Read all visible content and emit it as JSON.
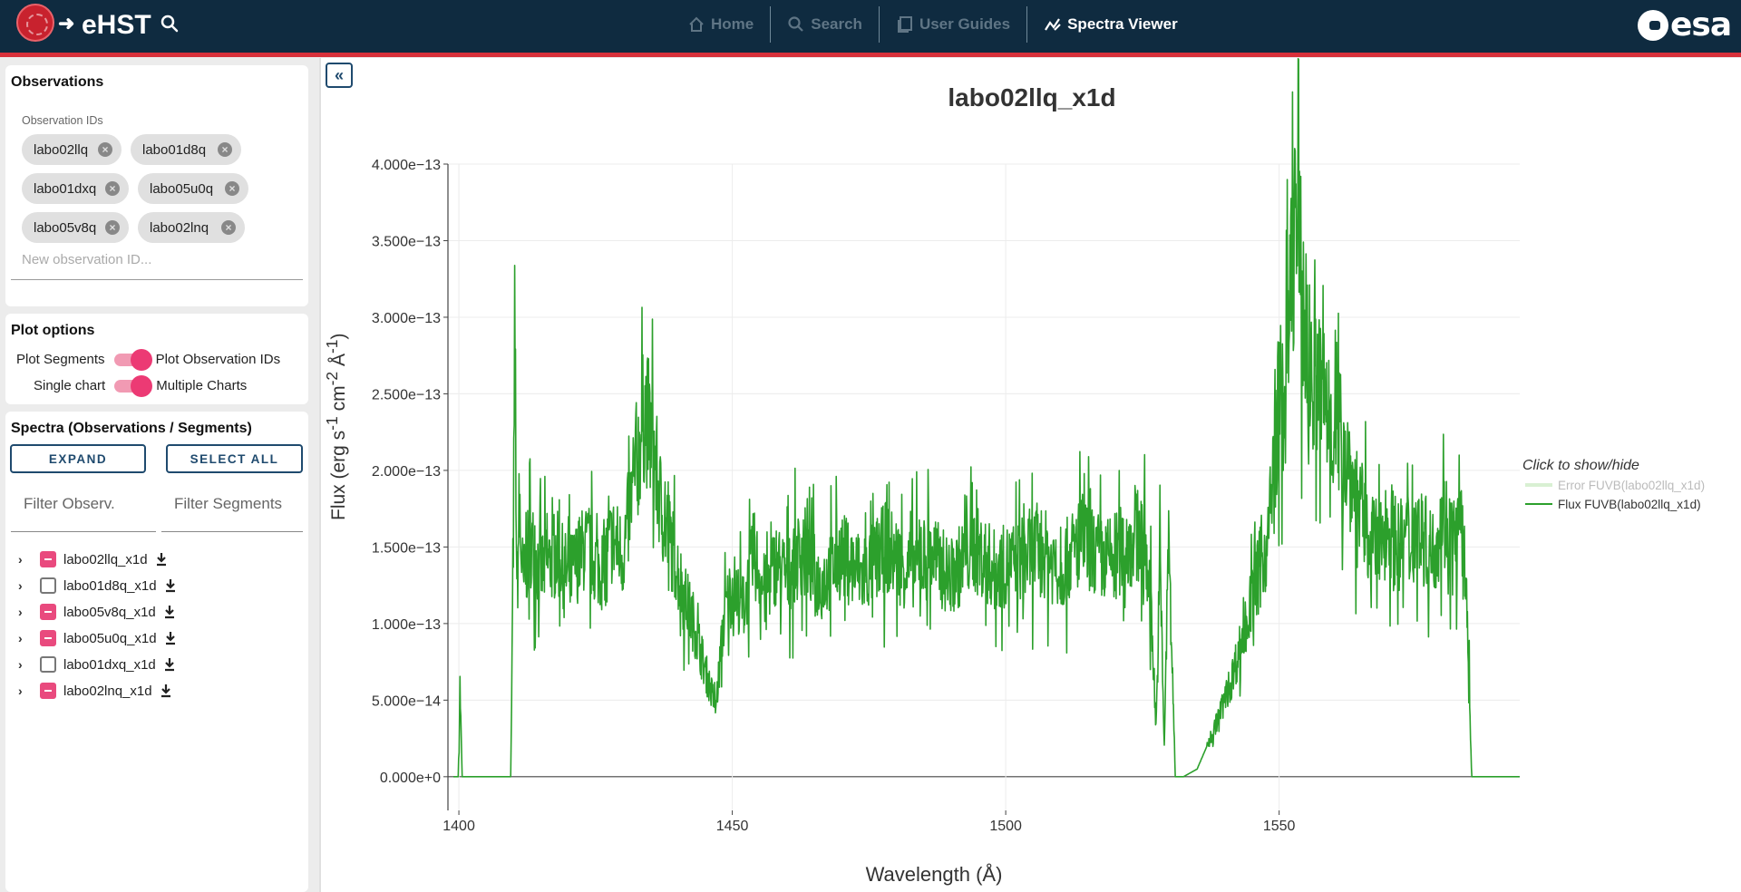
{
  "header": {
    "app_title": "eHST",
    "nav": [
      {
        "label": "Home",
        "icon": "home-icon",
        "active": false
      },
      {
        "label": "Search",
        "icon": "search-icon",
        "active": false
      },
      {
        "label": "User Guides",
        "icon": "guides-icon",
        "active": false
      },
      {
        "label": "Spectra Viewer",
        "icon": "spectra-icon",
        "active": true
      }
    ],
    "org_logo_text": "esa"
  },
  "observations": {
    "title": "Observations",
    "field_label": "Observation IDs",
    "chips": [
      "labo02llq",
      "labo01d8q",
      "labo01dxq",
      "labo05u0q",
      "labo05v8q",
      "labo02lnq"
    ],
    "new_placeholder": "New observation ID..."
  },
  "plot_options": {
    "title": "Plot options",
    "toggle1": {
      "left": "Plot Segments",
      "right": "Plot Observation IDs",
      "on": true
    },
    "toggle2": {
      "left": "Single chart",
      "right": "Multiple Charts",
      "on": true
    }
  },
  "spectra": {
    "title": "Spectra (Observations / Segments)",
    "expand_label": "EXPAND",
    "select_all_label": "SELECT ALL",
    "filter_obs_placeholder": "Filter Observ.",
    "filter_seg_placeholder": "Filter Segments",
    "items": [
      {
        "label": "labo02llq_x1d",
        "state": "indeterminate"
      },
      {
        "label": "labo01d8q_x1d",
        "state": "unchecked"
      },
      {
        "label": "labo05v8q_x1d",
        "state": "indeterminate"
      },
      {
        "label": "labo05u0q_x1d",
        "state": "indeterminate"
      },
      {
        "label": "labo01dxq_x1d",
        "state": "unchecked"
      },
      {
        "label": "labo02lnq_x1d",
        "state": "indeterminate"
      }
    ]
  },
  "chart_data": {
    "type": "line",
    "title": "labo02llq_x1d",
    "xlabel": "Wavelength (Å)",
    "ylabel_parts": [
      "Flux (erg s",
      "-1",
      " cm",
      "-2",
      " Å",
      "-1",
      ")"
    ],
    "xlim": [
      1398,
      1594
    ],
    "ylim": [
      -2.2e-14,
      4e-13
    ],
    "x_ticks": [
      1400,
      1450,
      1500,
      1550
    ],
    "y_ticks": [
      0,
      5e-14,
      1e-13,
      1.5e-13,
      2e-13,
      2.5e-13,
      3e-13,
      3.5e-13,
      4e-13
    ],
    "y_tick_labels": [
      "0.000e+0",
      "5.000e−14",
      "1.000e−13",
      "1.500e−13",
      "2.000e−13",
      "2.500e−13",
      "3.000e−13",
      "3.500e−13",
      "4.000e−13"
    ],
    "grid": true,
    "legend_placement": "right",
    "legend_title": "Click to show/hide",
    "series": [
      {
        "name": "Error FUVB(labo02llq_x1d)",
        "color": "#d9f0d3",
        "visible": false,
        "x": [],
        "y": []
      },
      {
        "name": "Flux FUVB(labo02llq_x1d)",
        "color": "#2ca02c",
        "visible": true,
        "x": [
          1399,
          1399.9,
          1400.2,
          1400.6,
          1401,
          1405,
          1409.5,
          1410.3,
          1410.6,
          1411,
          1411.8,
          1413,
          1415,
          1418,
          1420,
          1423,
          1426,
          1428,
          1430,
          1432,
          1434,
          1435.5,
          1437,
          1439,
          1441,
          1443,
          1445,
          1447,
          1448.5,
          1450,
          1452,
          1454,
          1456,
          1458,
          1460,
          1463,
          1466,
          1470,
          1474,
          1478,
          1482,
          1486,
          1490,
          1494,
          1498,
          1502,
          1506,
          1510,
          1514,
          1518,
          1522,
          1525,
          1526.5,
          1527.5,
          1528.2,
          1529,
          1529.8,
          1531,
          1532.5,
          1535,
          1538,
          1541,
          1544,
          1546,
          1548,
          1550,
          1551,
          1552,
          1553,
          1554,
          1555,
          1556,
          1558,
          1560,
          1562,
          1564,
          1566,
          1568,
          1570,
          1572,
          1575,
          1578,
          1580,
          1582,
          1583.5,
          1584.5,
          1585.2,
          1586,
          1590,
          1594
        ],
        "y": [
          0,
          0,
          6e-14,
          0,
          0,
          0,
          0,
          2.8e-13,
          1.1e-13,
          1.7e-13,
          1.25e-13,
          1.55e-13,
          1.35e-13,
          1.45e-13,
          1.3e-13,
          1.5e-13,
          1.35e-13,
          1.55e-13,
          1.45e-13,
          1.9e-13,
          2.4e-13,
          2.15e-13,
          1.75e-13,
          1.5e-13,
          1.2e-13,
          1e-13,
          7e-14,
          4.5e-14,
          1.05e-13,
          1.25e-13,
          1.1e-13,
          1.45e-13,
          1.2e-13,
          1.4e-13,
          1.3e-13,
          1.5e-13,
          1.25e-13,
          1.45e-13,
          1.3e-13,
          1.5e-13,
          1.35e-13,
          1.45e-13,
          1.3e-13,
          1.5e-13,
          1.35e-13,
          1.4e-13,
          1.5e-13,
          1.35e-13,
          1.55e-13,
          1.4e-13,
          1.5e-13,
          1.6e-13,
          1.2e-13,
          3e-14,
          1.4e-13,
          2e-14,
          1.6e-13,
          0,
          0,
          5e-15,
          3e-14,
          6e-14,
          1e-13,
          1.3e-13,
          1.55e-13,
          2.5e-13,
          2.4e-13,
          3.1e-13,
          3.7e-13,
          3.25e-13,
          2.8e-13,
          2.6e-13,
          2.5e-13,
          2.3e-13,
          2.15e-13,
          1.85e-13,
          1.6e-13,
          1.5e-13,
          1.65e-13,
          1.5e-13,
          1.65e-13,
          1.45e-13,
          1.7e-13,
          1.55e-13,
          1.6e-13,
          1e-13,
          0,
          0,
          0,
          0
        ]
      }
    ]
  }
}
